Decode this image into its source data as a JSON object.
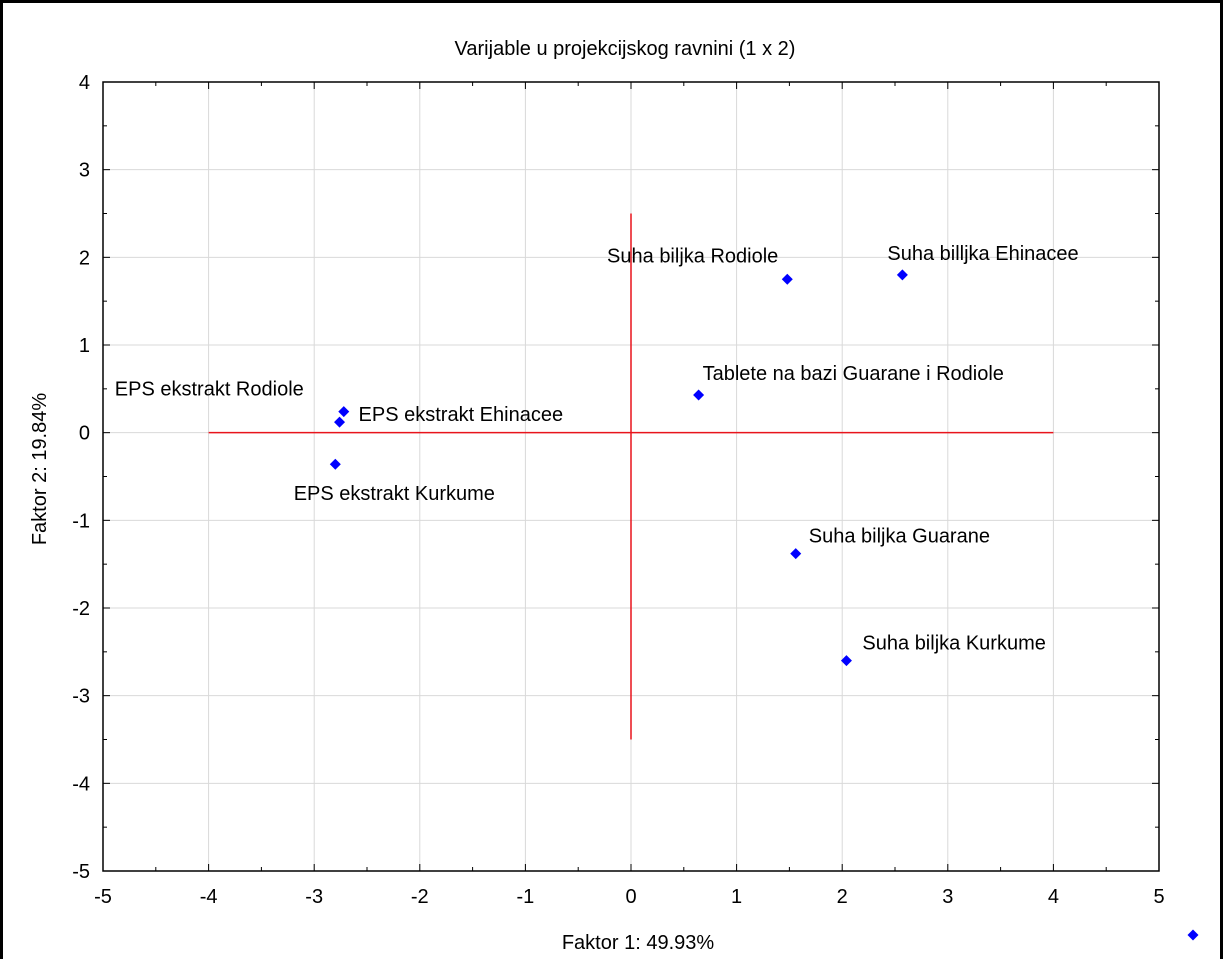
{
  "chart_data": {
    "type": "scatter",
    "title": "Varijable u projekcijskog ravnini (1 x 2)",
    "xlabel": "Faktor 1: 49.93%",
    "ylabel": "Faktor 2: 19.84%",
    "xlim": [
      -5,
      5
    ],
    "ylim": [
      -5,
      4
    ],
    "x_ticks": [
      -5,
      -4,
      -3,
      -2,
      -1,
      0,
      1,
      2,
      3,
      4,
      5
    ],
    "y_ticks": [
      -5,
      -4,
      -3,
      -2,
      -1,
      0,
      1,
      2,
      3,
      4
    ],
    "grid": true,
    "reference_lines": [
      {
        "orientation": "horizontal",
        "y": 0,
        "x_range": [
          -4,
          4
        ],
        "color": "#e8141c"
      },
      {
        "orientation": "vertical",
        "x": 0,
        "y_range": [
          -3.5,
          2.5
        ],
        "color": "#e8141c"
      }
    ],
    "marker_color": "#0000ff",
    "points": [
      {
        "label": "Suha biljka Rodiole",
        "x": 1.48,
        "y": 1.75
      },
      {
        "label": "Suha billjka Ehinacee",
        "x": 2.57,
        "y": 1.8
      },
      {
        "label": "Tablete na bazi Guarane i Rodiole",
        "x": 0.64,
        "y": 0.43
      },
      {
        "label": "EPS ekstrakt Rodiole",
        "x": -2.72,
        "y": 0.24
      },
      {
        "label": "EPS ekstrakt Ehinacee",
        "x": -2.76,
        "y": 0.12
      },
      {
        "label": "EPS ekstrakt Kurkume",
        "x": -2.8,
        "y": -0.36
      },
      {
        "label": "Suha biljka Guarane",
        "x": 1.56,
        "y": -1.38
      },
      {
        "label": "Suha biljka Kurkume",
        "x": 2.04,
        "y": -2.6
      }
    ]
  }
}
